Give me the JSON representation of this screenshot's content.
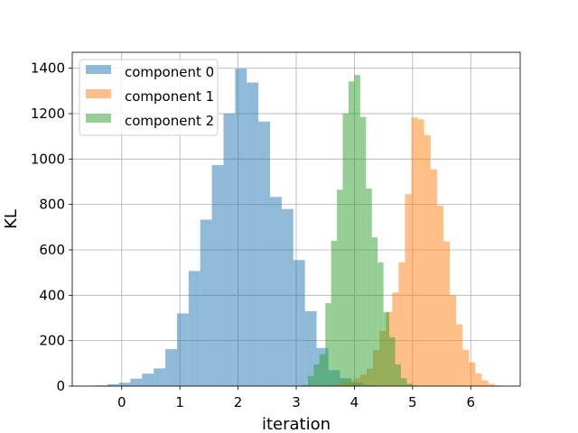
{
  "chart_data": {
    "type": "histogram",
    "xlabel": "iteration",
    "ylabel": "KL",
    "xlim": [
      -0.85,
      6.85
    ],
    "ylim": [
      0,
      1470
    ],
    "xticks": [
      0,
      1,
      2,
      3,
      4,
      5,
      6
    ],
    "yticks": [
      0,
      200,
      400,
      600,
      800,
      1000,
      1200,
      1400
    ],
    "grid": true,
    "legend_position": "upper-left",
    "series": [
      {
        "name": "component 0",
        "color": "#1f77b4",
        "opacity": 0.5,
        "bins": [
          {
            "x0": -0.45,
            "x1": -0.25,
            "y": 3
          },
          {
            "x0": -0.25,
            "x1": -0.05,
            "y": 8
          },
          {
            "x0": -0.05,
            "x1": 0.15,
            "y": 15
          },
          {
            "x0": 0.15,
            "x1": 0.35,
            "y": 33
          },
          {
            "x0": 0.35,
            "x1": 0.55,
            "y": 55
          },
          {
            "x0": 0.55,
            "x1": 0.75,
            "y": 78
          },
          {
            "x0": 0.75,
            "x1": 0.95,
            "y": 163
          },
          {
            "x0": 0.95,
            "x1": 1.15,
            "y": 320
          },
          {
            "x0": 1.15,
            "x1": 1.35,
            "y": 507
          },
          {
            "x0": 1.35,
            "x1": 1.55,
            "y": 733
          },
          {
            "x0": 1.55,
            "x1": 1.75,
            "y": 973
          },
          {
            "x0": 1.75,
            "x1": 1.95,
            "y": 1200
          },
          {
            "x0": 1.95,
            "x1": 2.15,
            "y": 1398
          },
          {
            "x0": 2.15,
            "x1": 2.35,
            "y": 1337
          },
          {
            "x0": 2.35,
            "x1": 2.55,
            "y": 1165
          },
          {
            "x0": 2.55,
            "x1": 2.75,
            "y": 833
          },
          {
            "x0": 2.75,
            "x1": 2.95,
            "y": 780
          },
          {
            "x0": 2.95,
            "x1": 3.15,
            "y": 555
          },
          {
            "x0": 3.15,
            "x1": 3.35,
            "y": 330
          },
          {
            "x0": 3.35,
            "x1": 3.55,
            "y": 168
          },
          {
            "x0": 3.55,
            "x1": 3.75,
            "y": 70
          },
          {
            "x0": 3.75,
            "x1": 3.95,
            "y": 35
          },
          {
            "x0": 3.95,
            "x1": 4.15,
            "y": 15
          },
          {
            "x0": 4.15,
            "x1": 4.35,
            "y": 5
          },
          {
            "x0": 4.35,
            "x1": 4.55,
            "y": 2
          }
        ]
      },
      {
        "name": "component 1",
        "color": "#ff7f0e",
        "opacity": 0.5,
        "bins": [
          {
            "x0": 3.55,
            "x1": 3.66,
            "y": 4
          },
          {
            "x0": 3.66,
            "x1": 3.77,
            "y": 8
          },
          {
            "x0": 3.77,
            "x1": 3.88,
            "y": 14
          },
          {
            "x0": 3.88,
            "x1": 3.99,
            "y": 22
          },
          {
            "x0": 3.99,
            "x1": 4.1,
            "y": 35
          },
          {
            "x0": 4.1,
            "x1": 4.21,
            "y": 50
          },
          {
            "x0": 4.21,
            "x1": 4.32,
            "y": 77
          },
          {
            "x0": 4.32,
            "x1": 4.43,
            "y": 160
          },
          {
            "x0": 4.43,
            "x1": 4.54,
            "y": 243
          },
          {
            "x0": 4.54,
            "x1": 4.65,
            "y": 327
          },
          {
            "x0": 4.65,
            "x1": 4.76,
            "y": 412
          },
          {
            "x0": 4.76,
            "x1": 4.87,
            "y": 545
          },
          {
            "x0": 4.87,
            "x1": 4.98,
            "y": 845
          },
          {
            "x0": 4.98,
            "x1": 5.09,
            "y": 1183
          },
          {
            "x0": 5.09,
            "x1": 5.2,
            "y": 1175
          },
          {
            "x0": 5.2,
            "x1": 5.31,
            "y": 1105
          },
          {
            "x0": 5.31,
            "x1": 5.42,
            "y": 955
          },
          {
            "x0": 5.42,
            "x1": 5.53,
            "y": 795
          },
          {
            "x0": 5.53,
            "x1": 5.64,
            "y": 637
          },
          {
            "x0": 5.64,
            "x1": 5.75,
            "y": 400
          },
          {
            "x0": 5.75,
            "x1": 5.86,
            "y": 272
          },
          {
            "x0": 5.86,
            "x1": 5.97,
            "y": 160
          },
          {
            "x0": 5.97,
            "x1": 6.08,
            "y": 105
          },
          {
            "x0": 6.08,
            "x1": 6.19,
            "y": 55
          },
          {
            "x0": 6.19,
            "x1": 6.3,
            "y": 25
          },
          {
            "x0": 6.3,
            "x1": 6.41,
            "y": 10
          },
          {
            "x0": 6.41,
            "x1": 6.52,
            "y": 3
          }
        ]
      },
      {
        "name": "component 2",
        "color": "#2ca02c",
        "opacity": 0.5,
        "bins": [
          {
            "x0": 3.0,
            "x1": 3.1,
            "y": 2
          },
          {
            "x0": 3.1,
            "x1": 3.2,
            "y": 5
          },
          {
            "x0": 3.2,
            "x1": 3.3,
            "y": 45
          },
          {
            "x0": 3.3,
            "x1": 3.4,
            "y": 95
          },
          {
            "x0": 3.4,
            "x1": 3.5,
            "y": 140
          },
          {
            "x0": 3.5,
            "x1": 3.6,
            "y": 365
          },
          {
            "x0": 3.6,
            "x1": 3.7,
            "y": 640
          },
          {
            "x0": 3.7,
            "x1": 3.8,
            "y": 865
          },
          {
            "x0": 3.8,
            "x1": 3.9,
            "y": 1200
          },
          {
            "x0": 3.9,
            "x1": 4.0,
            "y": 1342
          },
          {
            "x0": 4.0,
            "x1": 4.1,
            "y": 1370
          },
          {
            "x0": 4.1,
            "x1": 4.2,
            "y": 1185
          },
          {
            "x0": 4.2,
            "x1": 4.3,
            "y": 870
          },
          {
            "x0": 4.3,
            "x1": 4.4,
            "y": 655
          },
          {
            "x0": 4.4,
            "x1": 4.5,
            "y": 545
          },
          {
            "x0": 4.5,
            "x1": 4.6,
            "y": 325
          },
          {
            "x0": 4.6,
            "x1": 4.7,
            "y": 215
          },
          {
            "x0": 4.7,
            "x1": 4.8,
            "y": 95
          },
          {
            "x0": 4.8,
            "x1": 4.9,
            "y": 35
          },
          {
            "x0": 4.9,
            "x1": 5.0,
            "y": 10
          },
          {
            "x0": 5.0,
            "x1": 5.1,
            "y": 3
          }
        ]
      }
    ]
  }
}
